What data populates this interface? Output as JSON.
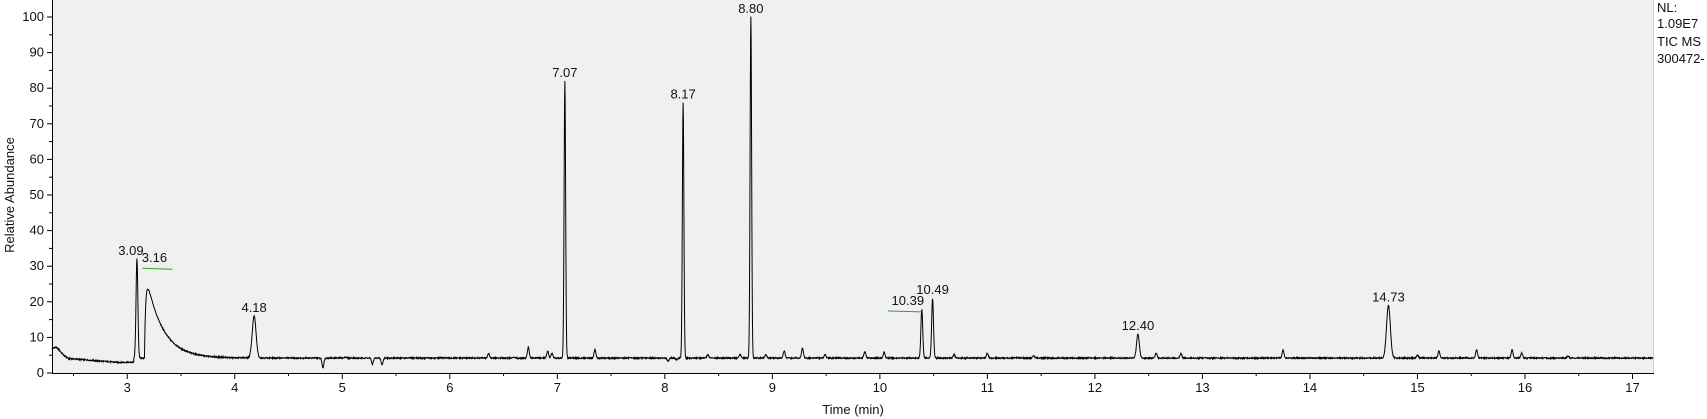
{
  "chart_data": {
    "type": "line",
    "xlabel": "Time (min)",
    "ylabel": "Relative Abundance",
    "xlim": [
      2.3,
      17.2
    ],
    "ylim": [
      0,
      100
    ],
    "x_ticks": [
      3,
      4,
      5,
      6,
      7,
      8,
      9,
      10,
      11,
      12,
      13,
      14,
      15,
      16,
      17
    ],
    "y_ticks": [
      0,
      10,
      20,
      30,
      40,
      50,
      60,
      70,
      80,
      90,
      100
    ],
    "grid": false,
    "baseline": 4.2,
    "info_lines": [
      "NL:",
      "1.09E7",
      "TIC  MS",
      "300472-"
    ],
    "major_peaks": [
      {
        "time": 3.09,
        "height": 32,
        "width": 0.012,
        "label": "3.09"
      },
      {
        "time": 3.16,
        "height": 30,
        "width": 0.1,
        "tail": 0.15,
        "label": "3.16",
        "marker": true
      },
      {
        "time": 4.18,
        "height": 16,
        "width": 0.025,
        "label": "4.18"
      },
      {
        "time": 7.07,
        "height": 82,
        "width": 0.01,
        "label": "7.07"
      },
      {
        "time": 8.17,
        "height": 76,
        "width": 0.01,
        "label": "8.17"
      },
      {
        "time": 8.8,
        "height": 100,
        "width": 0.01,
        "label": "8.80"
      },
      {
        "time": 10.39,
        "height": 18,
        "width": 0.012,
        "label": "10.39",
        "marker": true
      },
      {
        "time": 10.49,
        "height": 21,
        "width": 0.012,
        "label": "10.49"
      },
      {
        "time": 12.4,
        "height": 11,
        "width": 0.018,
        "label": "12.40"
      },
      {
        "time": 14.73,
        "height": 19,
        "width": 0.025,
        "label": "14.73"
      }
    ],
    "minor_peaks": [
      {
        "time": 4.82,
        "height": 1.5
      },
      {
        "time": 5.03,
        "height": 4.5
      },
      {
        "time": 5.28,
        "height": 2.5
      },
      {
        "time": 5.37,
        "height": 2.3
      },
      {
        "time": 5.76,
        "height": 4.2
      },
      {
        "time": 6.36,
        "height": 5.6
      },
      {
        "time": 6.6,
        "height": 4.5
      },
      {
        "time": 6.73,
        "height": 7.2
      },
      {
        "time": 6.91,
        "height": 6.2
      },
      {
        "time": 6.95,
        "height": 5.5
      },
      {
        "time": 7.35,
        "height": 6.6
      },
      {
        "time": 7.43,
        "height": 4.2
      },
      {
        "time": 7.92,
        "height": 4.2
      },
      {
        "time": 8.03,
        "height": 3.2
      },
      {
        "time": 8.11,
        "height": 3.8
      },
      {
        "time": 8.32,
        "height": 4.2
      },
      {
        "time": 8.4,
        "height": 5.2
      },
      {
        "time": 8.7,
        "height": 5.2
      },
      {
        "time": 8.94,
        "height": 5.2
      },
      {
        "time": 9.11,
        "height": 6.2
      },
      {
        "time": 9.28,
        "height": 7.0
      },
      {
        "time": 9.49,
        "height": 5.2
      },
      {
        "time": 9.86,
        "height": 6.0
      },
      {
        "time": 10.04,
        "height": 5.8
      },
      {
        "time": 10.69,
        "height": 5.2
      },
      {
        "time": 11.0,
        "height": 5.6
      },
      {
        "time": 11.43,
        "height": 4.9
      },
      {
        "time": 12.57,
        "height": 5.6
      },
      {
        "time": 12.8,
        "height": 5.6
      },
      {
        "time": 13.75,
        "height": 6.5
      },
      {
        "time": 15.0,
        "height": 5.0
      },
      {
        "time": 15.2,
        "height": 6.3
      },
      {
        "time": 15.55,
        "height": 6.5
      },
      {
        "time": 15.88,
        "height": 6.5
      },
      {
        "time": 15.97,
        "height": 5.6
      },
      {
        "time": 16.4,
        "height": 4.8
      }
    ],
    "colors": {
      "plot_background": "#f0f0f0",
      "trace": "#000000",
      "axis": "#000000",
      "marker": "#2ca02c"
    }
  }
}
